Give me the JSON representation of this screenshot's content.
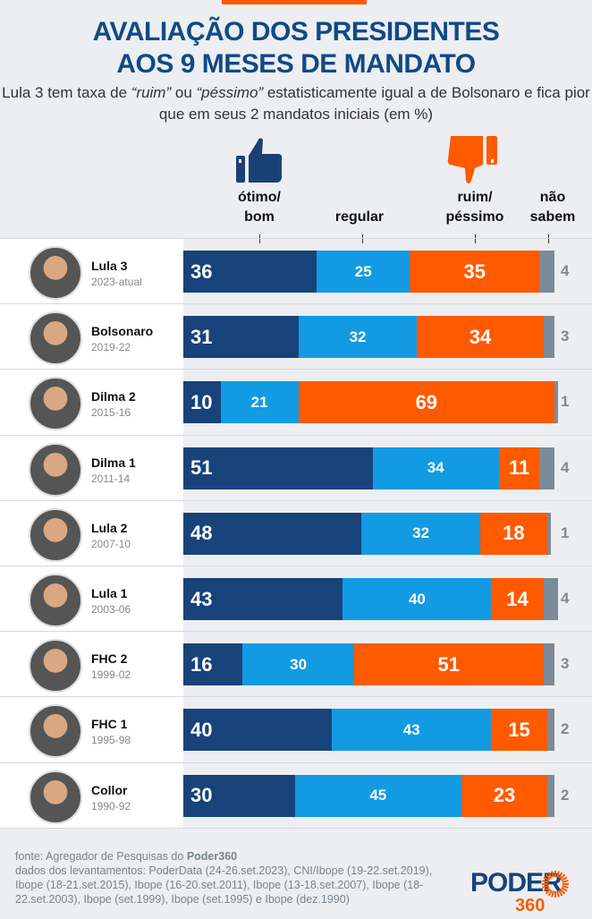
{
  "title": [
    "AVALIAÇÃO DOS PRESIDENTES",
    "AOS 9 MESES DE MANDATO"
  ],
  "subtitle": {
    "pre": "Lula 3 tem taxa de ",
    "q1": "“ruim”",
    "mid": " ou ",
    "q2": "“péssimo”",
    "post": " estatisticamente igual a de Bolsonaro e fica pior que em seus 2 mandatos iniciais (em %)"
  },
  "colors": {
    "otimo": "#17437a",
    "regular": "#129be2",
    "ruim": "#ff5a00",
    "nao_sabem": "#7c8a98"
  },
  "chart_data": {
    "type": "bar",
    "stacked": true,
    "orientation": "horizontal",
    "title": "AVALIAÇÃO DOS PRESIDENTES AOS 9 MESES DE MANDATO",
    "legend": [
      "ótimo/ bom",
      "regular",
      "ruim/ péssimo",
      "não sabem"
    ],
    "categories": [
      {
        "name": "Lula 3",
        "years": "2023-atual"
      },
      {
        "name": "Bolsonaro",
        "years": "2019-22"
      },
      {
        "name": "Dilma 2",
        "years": "2015-16"
      },
      {
        "name": "Dilma 1",
        "years": "2011-14"
      },
      {
        "name": "Lula 2",
        "years": "2007-10"
      },
      {
        "name": "Lula 1",
        "years": "2003-06"
      },
      {
        "name": "FHC 2",
        "years": "1999-02"
      },
      {
        "name": "FHC 1",
        "years": "1995-98"
      },
      {
        "name": "Collor",
        "years": "1990-92"
      }
    ],
    "series": [
      {
        "name": "ótimo/ bom",
        "values": [
          36,
          31,
          10,
          51,
          48,
          43,
          16,
          40,
          30
        ]
      },
      {
        "name": "regular",
        "values": [
          25,
          32,
          21,
          34,
          32,
          40,
          30,
          43,
          45
        ]
      },
      {
        "name": "ruim/ péssimo",
        "values": [
          35,
          34,
          69,
          11,
          18,
          14,
          51,
          15,
          23
        ]
      },
      {
        "name": "não sabem",
        "values": [
          4,
          3,
          1,
          4,
          1,
          4,
          3,
          2,
          2
        ]
      }
    ],
    "xlim": [
      0,
      100
    ]
  },
  "footer": {
    "source_pre": "fonte: Agregador de Pesquisas do ",
    "source_brand": "Poder360",
    "details": "dados dos levantamentos: PoderData (24-26.set.2023), CNI/Ibope (19-22.set.2019), Ibope (18-21.set.2015), Ibope (16-20.set.2011), Ibope (13-18.set.2007), Ibope (18-22.set.2003), Ibope (set.1999), Ibope (set.1995) e Ibope (dez.1990)"
  },
  "logo": {
    "word": "PODER",
    "num": "360"
  }
}
